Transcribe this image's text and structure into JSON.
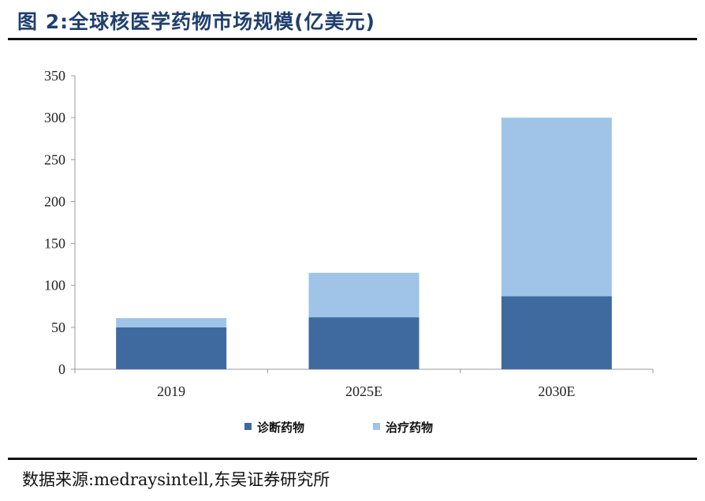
{
  "figure": {
    "title": "图 2:全球核医学药物市场规模(亿美元)",
    "source": "数据来源:medraysintell,东吴证券研究所"
  },
  "chart_data": {
    "type": "bar",
    "stacked": true,
    "categories": [
      "2019",
      "2025E",
      "2030E"
    ],
    "series": [
      {
        "name": "诊断药物",
        "values": [
          50,
          62,
          87
        ],
        "color": "#3f6aa0"
      },
      {
        "name": "治疗药物",
        "values": [
          11,
          53,
          213
        ],
        "color": "#9fc4e7"
      }
    ],
    "title": "",
    "xlabel": "",
    "ylabel": "",
    "ylim": [
      0,
      350
    ],
    "yticks": [
      0,
      50,
      100,
      150,
      200,
      250,
      300,
      350
    ],
    "grid": false,
    "legend": "bottom"
  }
}
